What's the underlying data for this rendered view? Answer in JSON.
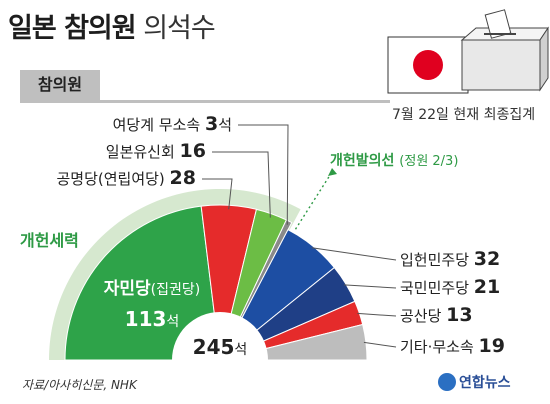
{
  "header": {
    "title_bold": "일본 참의원",
    "title_rest": "의석수"
  },
  "tab_label": "참의원",
  "date_note": "7월 22일 현재 최종집계",
  "source": "자료/아사히신문, NHK",
  "logo_text": "연합뉴스",
  "bloc_label": "개헌세력",
  "threshold": {
    "label": "개헌발의선",
    "note": "(정원 2/3)"
  },
  "center": {
    "total": "245",
    "unit": "석"
  },
  "chart_data": {
    "type": "pie",
    "subtype": "semicircle parliament",
    "total": 245,
    "threshold_fraction": "2/3",
    "series": [
      {
        "name": "자민당",
        "note": "(집권당)",
        "value": 113,
        "unit": "석",
        "color": "#2ea349",
        "bloc": "개헌세력"
      },
      {
        "name": "공명당",
        "note": "(연립여당)",
        "value": 28,
        "color": "#e52b2b",
        "bloc": "개헌세력"
      },
      {
        "name": "일본유신회",
        "note": "",
        "value": 16,
        "color": "#6cbd45",
        "bloc": "개헌세력"
      },
      {
        "name": "여당계 무소속",
        "note": "",
        "value": 3,
        "color": "#8a8a8a",
        "bloc": "개헌세력"
      },
      {
        "name": "입헌민주당",
        "note": "",
        "value": 32,
        "color": "#1d4ea3",
        "bloc": ""
      },
      {
        "name": "국민민주당",
        "note": "",
        "value": 21,
        "color": "#1f3f86",
        "bloc": ""
      },
      {
        "name": "공산당",
        "note": "",
        "value": 13,
        "color": "#e52b2b",
        "bloc": ""
      },
      {
        "name": "기타·무소속",
        "note": "",
        "value": 19,
        "color": "#bdbdbd",
        "bloc": ""
      }
    ]
  }
}
